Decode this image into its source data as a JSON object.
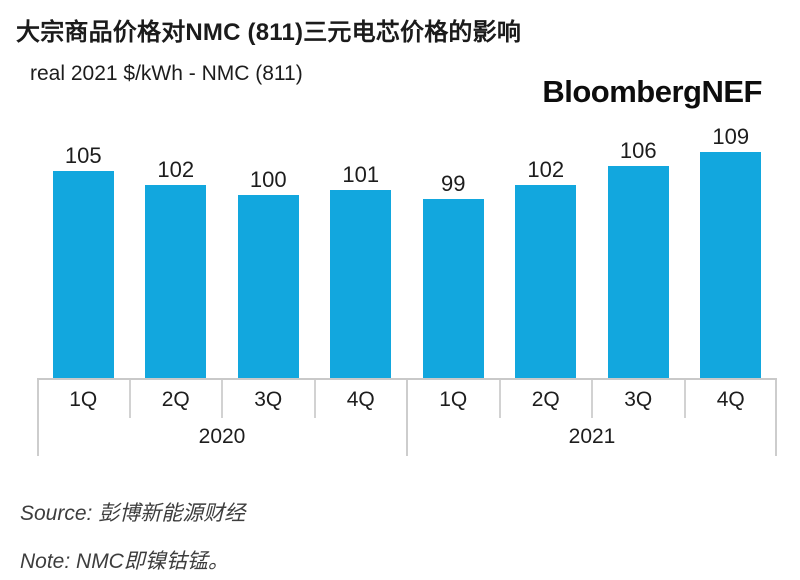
{
  "header": {
    "title": "大宗商品价格对NMC (811)三元电芯价格的影响",
    "subtitle": "real 2021 $/kWh - NMC (811)",
    "logo": "BloombergNEF"
  },
  "chart_data": {
    "type": "bar",
    "title": "real 2021 $/kWh - NMC (811)",
    "categories": [
      "1Q",
      "2Q",
      "3Q",
      "4Q",
      "1Q",
      "2Q",
      "3Q",
      "4Q"
    ],
    "group_labels": [
      "2020",
      "2021"
    ],
    "values": [
      105,
      102,
      100,
      101,
      99,
      102,
      106,
      109
    ],
    "value_labels_shown": true,
    "bar_color": "#12A7DE",
    "ylabel": "real 2021 $/kWh",
    "axis_truncated_at": 61,
    "grid": false,
    "legend": "none"
  },
  "footer": {
    "source": "Source: 彭博新能源财经",
    "note": "Note: NMC即镍钴锰。"
  }
}
